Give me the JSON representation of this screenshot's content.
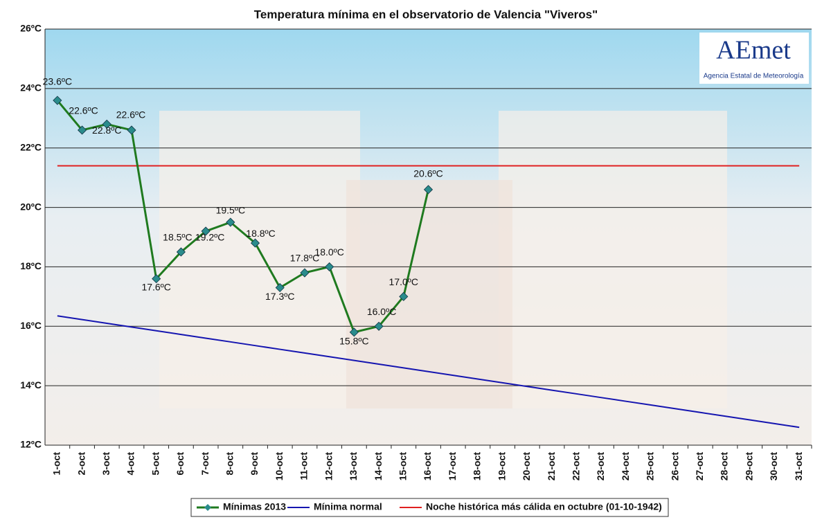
{
  "chart_data": {
    "type": "line",
    "title": "Temperatura mínima en el observatorio de Valencia \"Viveros\"",
    "logo": {
      "name": "AEmet",
      "subtitle": "Agencia Estatal de Meteorología"
    },
    "categories": [
      "1-oct",
      "2-oct",
      "3-oct",
      "4-oct",
      "5-oct",
      "6-oct",
      "7-oct",
      "8-oct",
      "9-oct",
      "10-oct",
      "11-oct",
      "12-oct",
      "13-oct",
      "14-oct",
      "15-oct",
      "16-oct",
      "17-oct",
      "18-oct",
      "19-oct",
      "20-oct",
      "21-oct",
      "22-oct",
      "23-oct",
      "24-oct",
      "25-oct",
      "26-oct",
      "27-oct",
      "28-oct",
      "29-oct",
      "30-oct",
      "31-oct"
    ],
    "series": [
      {
        "name": "Mínimas 2013",
        "color": "#1f7a1f",
        "marker_color": "#2a8c8c",
        "marker": "diamond",
        "values": [
          23.6,
          22.6,
          22.8,
          22.6,
          17.6,
          18.5,
          19.2,
          19.5,
          18.8,
          17.3,
          17.8,
          18.0,
          15.8,
          16.0,
          17.0,
          20.6,
          null,
          null,
          null,
          null,
          null,
          null,
          null,
          null,
          null,
          null,
          null,
          null,
          null,
          null,
          null
        ],
        "value_labels": [
          "23.6ºC",
          "22.6ºC",
          "22.8ºC",
          "22.6ºC",
          "17.6ºC",
          "18.5ºC",
          "19.2ºC",
          "19.5ºC",
          "18.8ºC",
          "17.3ºC",
          "17.8ºC",
          "18.0ºC",
          "15.8ºC",
          "16.0ºC",
          "17.0ºC",
          "20.6ºC",
          null,
          null,
          null,
          null,
          null,
          null,
          null,
          null,
          null,
          null,
          null,
          null,
          null,
          null,
          null
        ]
      },
      {
        "name": "Mínima normal",
        "color": "#1515b0",
        "values": [
          16.35,
          16.225,
          16.1,
          15.975,
          15.85,
          15.725,
          15.6,
          15.475,
          15.35,
          15.225,
          15.1,
          14.975,
          14.85,
          14.725,
          14.6,
          14.475,
          14.35,
          14.225,
          14.1,
          13.975,
          13.85,
          13.725,
          13.6,
          13.475,
          13.35,
          13.225,
          13.1,
          12.975,
          12.85,
          12.725,
          12.6
        ]
      },
      {
        "name": "Noche histórica más cálida en octubre (01-10-1942)",
        "color": "#e02020",
        "values": [
          21.4,
          21.4,
          21.4,
          21.4,
          21.4,
          21.4,
          21.4,
          21.4,
          21.4,
          21.4,
          21.4,
          21.4,
          21.4,
          21.4,
          21.4,
          21.4,
          21.4,
          21.4,
          21.4,
          21.4,
          21.4,
          21.4,
          21.4,
          21.4,
          21.4,
          21.4,
          21.4,
          21.4,
          21.4,
          21.4,
          21.4
        ]
      }
    ],
    "ylim": [
      12,
      26
    ],
    "yticks": [
      {
        "value": 12,
        "label": "12ºC"
      },
      {
        "value": 14,
        "label": "14ºC"
      },
      {
        "value": 16,
        "label": "16ºC"
      },
      {
        "value": 18,
        "label": "18ºC"
      },
      {
        "value": 20,
        "label": "20ºC"
      },
      {
        "value": 22,
        "label": "22ºC"
      },
      {
        "value": 24,
        "label": "24ºC"
      },
      {
        "value": 26,
        "label": "26ºC"
      }
    ],
    "grid": true,
    "legend": "bottom"
  }
}
